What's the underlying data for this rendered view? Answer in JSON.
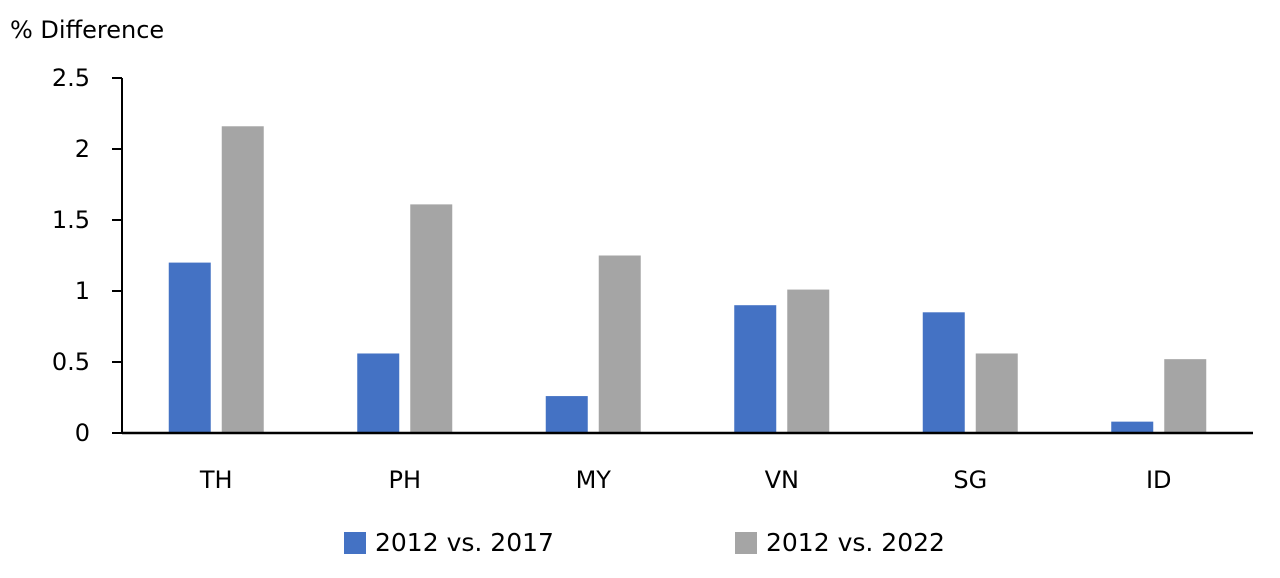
{
  "chart_data": {
    "type": "bar",
    "ylabel": "% Difference",
    "xlabel": "",
    "categories": [
      "TH",
      "PH",
      "MY",
      "VN",
      "SG",
      "ID"
    ],
    "series": [
      {
        "name": "2012 vs. 2017",
        "color": "#4472C4",
        "values": [
          1.2,
          0.56,
          0.26,
          0.9,
          0.85,
          0.08
        ]
      },
      {
        "name": "2012 vs. 2022",
        "color": "#A5A5A5",
        "values": [
          2.16,
          1.61,
          1.25,
          1.01,
          0.56,
          0.52
        ]
      }
    ],
    "ylim": [
      0,
      2.5
    ],
    "yticks": [
      "0",
      "0.5",
      "1",
      "1.5",
      "2",
      "2.5"
    ],
    "grid": false,
    "legend_position": "bottom"
  }
}
